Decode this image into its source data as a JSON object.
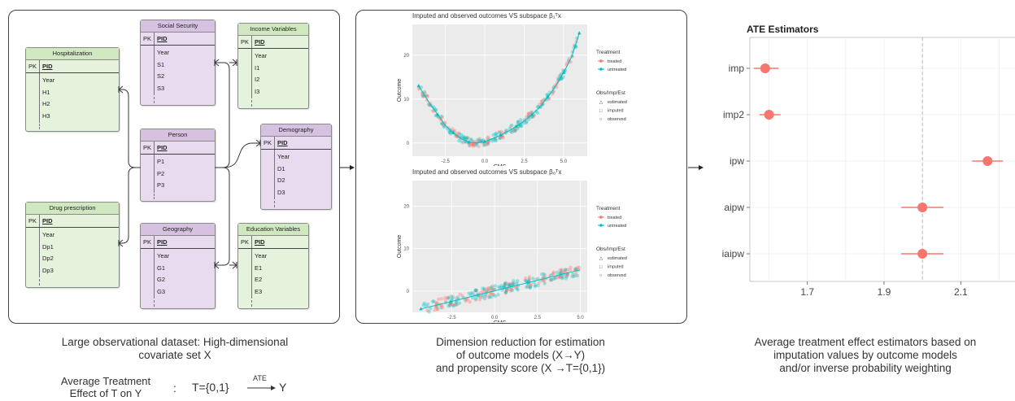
{
  "schema": {
    "tables": [
      {
        "id": "hospitalization",
        "title": "Hospitalization",
        "pk": "PK",
        "key": "PID",
        "fields": [
          "Year",
          "H1",
          "H2",
          "H3"
        ],
        "color": "#e6f3dc"
      },
      {
        "id": "drug_prescription",
        "title": "Drug prescription",
        "pk": "PK",
        "key": "PID",
        "fields": [
          "Year",
          "Dp1",
          "Dp2",
          "Dp3"
        ],
        "color": "#e6f3dc"
      },
      {
        "id": "social_security",
        "title": "Social Security",
        "pk": "PK",
        "key": "PID",
        "fields": [
          "Year",
          "S1",
          "S2",
          "S3"
        ],
        "color": "#e9dbef"
      },
      {
        "id": "person",
        "title": "Person",
        "pk": "PK",
        "key": "PID",
        "fields": [
          "P1",
          "P2",
          "P3"
        ],
        "color": "#e9dbef"
      },
      {
        "id": "geography",
        "title": "Geography",
        "pk": "PK",
        "key": "PID",
        "fields": [
          "Year",
          "G1",
          "G2",
          "G3"
        ],
        "color": "#e9dbef"
      },
      {
        "id": "income_variables",
        "title": "Income Variables",
        "pk": "PK",
        "key": "PID",
        "fields": [
          "Year",
          "I1",
          "I2",
          "I3"
        ],
        "color": "#e6f3dc"
      },
      {
        "id": "demography",
        "title": "Demography",
        "pk": "PK",
        "key": "PID",
        "fields": [
          "Year",
          "D1",
          "D2",
          "D3"
        ],
        "color": "#e9dbef"
      },
      {
        "id": "education_variables",
        "title": "Education Variables",
        "pk": "PK",
        "key": "PID",
        "fields": [
          "Year",
          "E1",
          "E2",
          "E3"
        ],
        "color": "#e6f3dc"
      }
    ]
  },
  "captions": {
    "left_line1": "Large observational dataset: High-dimensional",
    "left_line2": "covariate set X",
    "ate_label_line1": "Average Treatment",
    "ate_label_line2": "Effect of T on Y",
    "ate_colon": ":",
    "ate_formula_left": "T={0,1}",
    "ate_formula_arrow_label": "ATE",
    "ate_formula_right": "Y",
    "middle_line1": "Dimension reduction for estimation",
    "middle_line2": "of outcome models (X→Y)",
    "middle_line3": "and propensity score (X →T={0,1})",
    "right_line1": "Average treatment effect estimators based on",
    "right_line2": "imputation values by outcome models",
    "right_line3": "and/or inverse probability weighting"
  },
  "colors": {
    "treated": "#f8766d",
    "untreated": "#00bfc4",
    "panel_bg": "#ebebeb"
  },
  "chart_data": [
    {
      "type": "scatter",
      "title": "Imputed and observed outcomes VS subspace β₁ᵀx",
      "xlabel": "CMS",
      "ylabel": "Outcome",
      "xticks": [
        "-2.5",
        "0.0",
        "2.5",
        "5.0"
      ],
      "yticks": [
        "0",
        "10",
        "20"
      ],
      "xlim": [
        -4.6,
        6.5
      ],
      "ylim": [
        -3,
        27
      ],
      "curve": "quadratic",
      "curve_x": [
        -4.2,
        -3.5,
        -3,
        -2.5,
        -2,
        -1.5,
        -1,
        -0.5,
        0,
        0.5,
        1,
        1.5,
        2,
        2.5,
        3,
        3.5,
        4,
        4.5,
        5,
        5.5,
        6
      ],
      "curve_y": [
        13,
        9,
        6.5,
        4,
        2.3,
        1,
        0.2,
        0,
        0.3,
        1,
        1.8,
        2.7,
        3.8,
        5,
        6.5,
        8.2,
        10.5,
        13,
        16,
        19.5,
        25
      ],
      "legend": {
        "treatment_title": "Treatment",
        "treatment_items": [
          "treated",
          "untreated"
        ],
        "obs_title": "Obs/Imp/Est",
        "obs_items": [
          "estimated",
          "imputed",
          "observed"
        ]
      }
    },
    {
      "type": "scatter",
      "title": "Imputed and observed outcomes VS subspace β₀ᵀx",
      "xlabel": "CMS",
      "ylabel": "Outcome",
      "xticks": [
        "-2.5",
        "0.0",
        "2.5",
        "5.0"
      ],
      "yticks": [
        "0",
        "10",
        "20"
      ],
      "xlim": [
        -4.8,
        5.4
      ],
      "ylim": [
        -5,
        26
      ],
      "curve": "linear",
      "curve_x": [
        -4.3,
        5.0
      ],
      "curve_y": [
        -4.2,
        5.0
      ],
      "legend": {
        "treatment_title": "Treatment",
        "treatment_items": [
          "treated",
          "untreated"
        ],
        "obs_title": "Obs/Imp/Est",
        "obs_items": [
          "estimated",
          "imputed",
          "observed"
        ]
      }
    },
    {
      "type": "forest",
      "title": "ATE Estimators",
      "categories": [
        "imp",
        "imp2",
        "ipw",
        "aipw",
        "iaipw"
      ],
      "estimates": [
        1.59,
        1.6,
        2.17,
        2.0,
        2.0
      ],
      "ci_low": [
        1.56,
        1.575,
        2.13,
        1.945,
        1.945
      ],
      "ci_high": [
        1.625,
        1.63,
        2.21,
        2.055,
        2.055
      ],
      "reference_line": 2.0,
      "xticks": [
        "1.7",
        "1.9",
        "2.1"
      ],
      "xlim": [
        1.55,
        2.25
      ],
      "point_color": "#f8766d"
    }
  ]
}
